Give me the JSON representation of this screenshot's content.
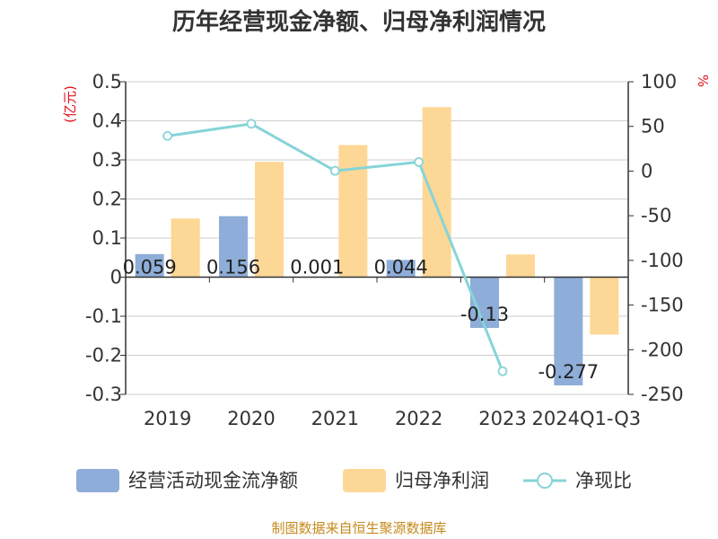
{
  "chart_data": {
    "type": "bar",
    "title": "历年经营现金净额、归母净利润情况",
    "categories": [
      "2019",
      "2020",
      "2021",
      "2022",
      "2023",
      "2024Q1-Q3"
    ],
    "series": [
      {
        "name": "经营活动现金流净额",
        "kind": "bar",
        "axis": "left",
        "color": "#8eadd8",
        "values": [
          0.059,
          0.156,
          0.001,
          0.044,
          -0.13,
          -0.277
        ],
        "labels": [
          "0.059",
          "0.156",
          "0.001",
          "0.044",
          "-0.13",
          "-0.277"
        ]
      },
      {
        "name": "归母净利润",
        "kind": "bar",
        "axis": "left",
        "color": "#fdd796",
        "values": [
          0.15,
          0.295,
          0.338,
          0.435,
          0.058,
          -0.147
        ]
      },
      {
        "name": "净现比",
        "kind": "line",
        "axis": "right",
        "color": "#86d4d8",
        "values": [
          39.3,
          52.9,
          0.3,
          10.1,
          -224.1,
          null
        ]
      }
    ],
    "left_axis": {
      "unit": "(亿元)",
      "ylim": [
        -0.3,
        0.5
      ],
      "ticks": [
        "0.5",
        "0.4",
        "0.3",
        "0.2",
        "0.1",
        "0",
        "-0.1",
        "-0.2",
        "-0.3"
      ]
    },
    "right_axis": {
      "unit": "%",
      "ylim": [
        -250,
        100
      ],
      "ticks": [
        "100",
        "50",
        "0",
        "-50",
        "-100",
        "-150",
        "-200",
        "-250"
      ]
    },
    "grid": true,
    "legend_position": "bottom"
  },
  "footer": {
    "source": "制图数据来自恒生聚源数据库"
  }
}
